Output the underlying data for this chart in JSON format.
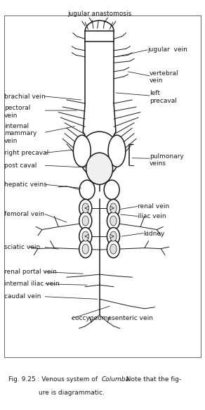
{
  "bg_color": "#ffffff",
  "line_color": "#1a1a1a",
  "fig_width": 2.92,
  "fig_height": 5.83,
  "dpi": 100,
  "fontsize": 6.5,
  "caption_line1": "Fig. 9.25 : Venous system of ",
  "caption_italic": "Columba",
  "caption_line1b": ". Note that the fig-",
  "caption_line2": "ure is diagrammatic."
}
